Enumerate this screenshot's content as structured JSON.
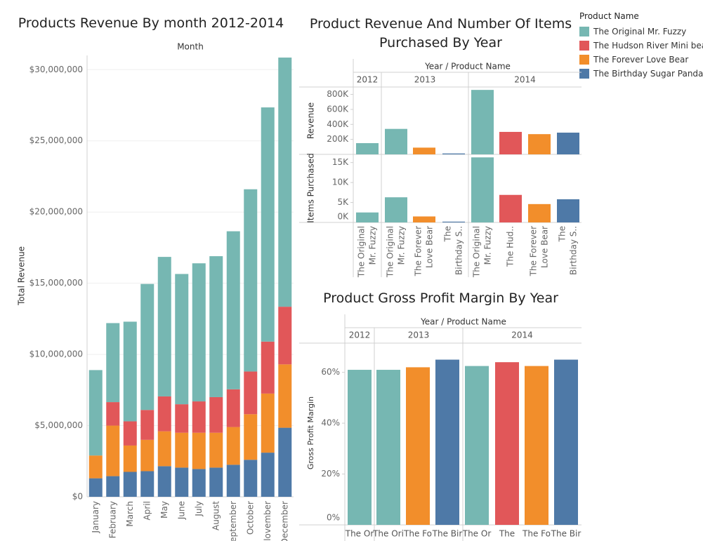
{
  "colors": {
    "The Original Mr. Fuzzy": "#76b7b2",
    "The Hudson River Mini bear": "#e15759",
    "The Forever Love Bear": "#f28e2b",
    "The Birthday Sugar Panda": "#4e79a7"
  },
  "legend": {
    "title": "Product Name",
    "items": [
      "The Original Mr. Fuzzy",
      "The Hudson River Mini bear",
      "The Forever Love Bear",
      "The Birthday Sugar Panda"
    ]
  },
  "chart_data": [
    {
      "type": "bar",
      "stacked": true,
      "title": "Products Revenue By month 2012-2014",
      "xlabel": "Month",
      "ylabel": "Total Revenue",
      "ylim": [
        0,
        31000000
      ],
      "yticks": [
        0,
        5000000,
        10000000,
        15000000,
        20000000,
        25000000,
        30000000
      ],
      "ytick_labels": [
        "$0",
        "$5,000,000",
        "$10,000,000",
        "$15,000,000",
        "$20,000,000",
        "$25,000,000",
        "$30,000,000"
      ],
      "categories": [
        "January",
        "February",
        "March",
        "April",
        "May",
        "June",
        "July",
        "August",
        "September",
        "October",
        "November",
        "December"
      ],
      "category_labels": [
        "January",
        "February",
        "March",
        "April",
        "May",
        "June",
        "July",
        "August",
        "eptember",
        "October",
        "lovember",
        "December"
      ],
      "series": [
        {
          "name": "The Birthday Sugar Panda",
          "values": [
            1300000,
            1450000,
            1750000,
            1800000,
            2150000,
            2050000,
            1950000,
            2050000,
            2250000,
            2600000,
            3100000,
            4850000
          ]
        },
        {
          "name": "The Forever Love Bear",
          "values": [
            1600000,
            3550000,
            1850000,
            2200000,
            2450000,
            2450000,
            2550000,
            2450000,
            2650000,
            3200000,
            4150000,
            4450000
          ]
        },
        {
          "name": "The Hudson River Mini bear",
          "values": [
            0,
            1650000,
            1700000,
            2100000,
            2450000,
            2000000,
            2200000,
            2500000,
            2650000,
            3000000,
            3650000,
            4050000
          ]
        },
        {
          "name": "The Original Mr. Fuzzy",
          "values": [
            6000000,
            5550000,
            7000000,
            8850000,
            9800000,
            9150000,
            9700000,
            9900000,
            11100000,
            12800000,
            16450000,
            17500000
          ]
        }
      ]
    },
    {
      "type": "bar",
      "title": "Product Revenue And Number Of Items Purchased By Year",
      "header": "Year / Product Name",
      "groups": [
        {
          "year": "2012",
          "products": [
            "The Original Mr. Fuzzy"
          ]
        },
        {
          "year": "2013",
          "products": [
            "The Original Mr. Fuzzy",
            "The Forever Love Bear",
            "The Birthday Sugar Panda"
          ]
        },
        {
          "year": "2014",
          "products": [
            "The Original Mr. Fuzzy",
            "The Hudson River Mini bear",
            "The Forever Love Bear",
            "The Birthday Sugar Panda"
          ]
        }
      ],
      "product_labels": [
        [
          "The Original",
          "Mr. Fuzzy"
        ],
        [
          "The Original",
          "Mr. Fuzzy"
        ],
        [
          "The Forever",
          "Love Bear"
        ],
        [
          "The",
          "Birthday S.."
        ],
        [
          "The Original",
          "Mr. Fuzzy"
        ],
        [
          "The Hud.."
        ],
        [
          "The Forever",
          "Love Bear"
        ],
        [
          "The",
          "Birthday S.."
        ]
      ],
      "revenue": {
        "ylabel": "Revenue",
        "ticks": [
          0,
          200000,
          400000,
          600000,
          800000
        ],
        "tick_labels": [
          "",
          "200K",
          "400K",
          "600K",
          "800K"
        ],
        "values": [
          150000,
          340000,
          90000,
          12000,
          860000,
          300000,
          270000,
          290000
        ]
      },
      "items": {
        "ylabel": "Items Purchased",
        "ticks": [
          0,
          5000,
          10000,
          15000
        ],
        "tick_labels": [
          "0K",
          "5K",
          "10K",
          "15K"
        ],
        "values": [
          2500,
          6300,
          1500,
          200,
          16300,
          6900,
          4600,
          5800
        ]
      }
    },
    {
      "type": "bar",
      "title": "Product Gross Profit Margin By Year",
      "header": "Year / Product Name",
      "ylabel": "Gross Profit Margin",
      "yticks": [
        0,
        0.2,
        0.4,
        0.6
      ],
      "ytick_labels": [
        "0%",
        "20%",
        "40%",
        "60%"
      ],
      "groups": [
        {
          "year": "2012",
          "products": [
            "The Original Mr. Fuzzy"
          ]
        },
        {
          "year": "2013",
          "products": [
            "The Original Mr. Fuzzy",
            "The Forever Love Bear",
            "The Birthday Sugar Panda"
          ]
        },
        {
          "year": "2014",
          "products": [
            "The Original Mr. Fuzzy",
            "The Hudson River Mini bear",
            "The Forever Love Bear",
            "The Birthday Sugar Panda"
          ]
        }
      ],
      "product_labels": [
        "The Or",
        "The Ori",
        "The Fo",
        "The Bir",
        "The Or",
        "The",
        "The Fo",
        "The Bir"
      ],
      "values": [
        0.61,
        0.61,
        0.62,
        0.65,
        0.625,
        0.64,
        0.625,
        0.65
      ]
    }
  ]
}
